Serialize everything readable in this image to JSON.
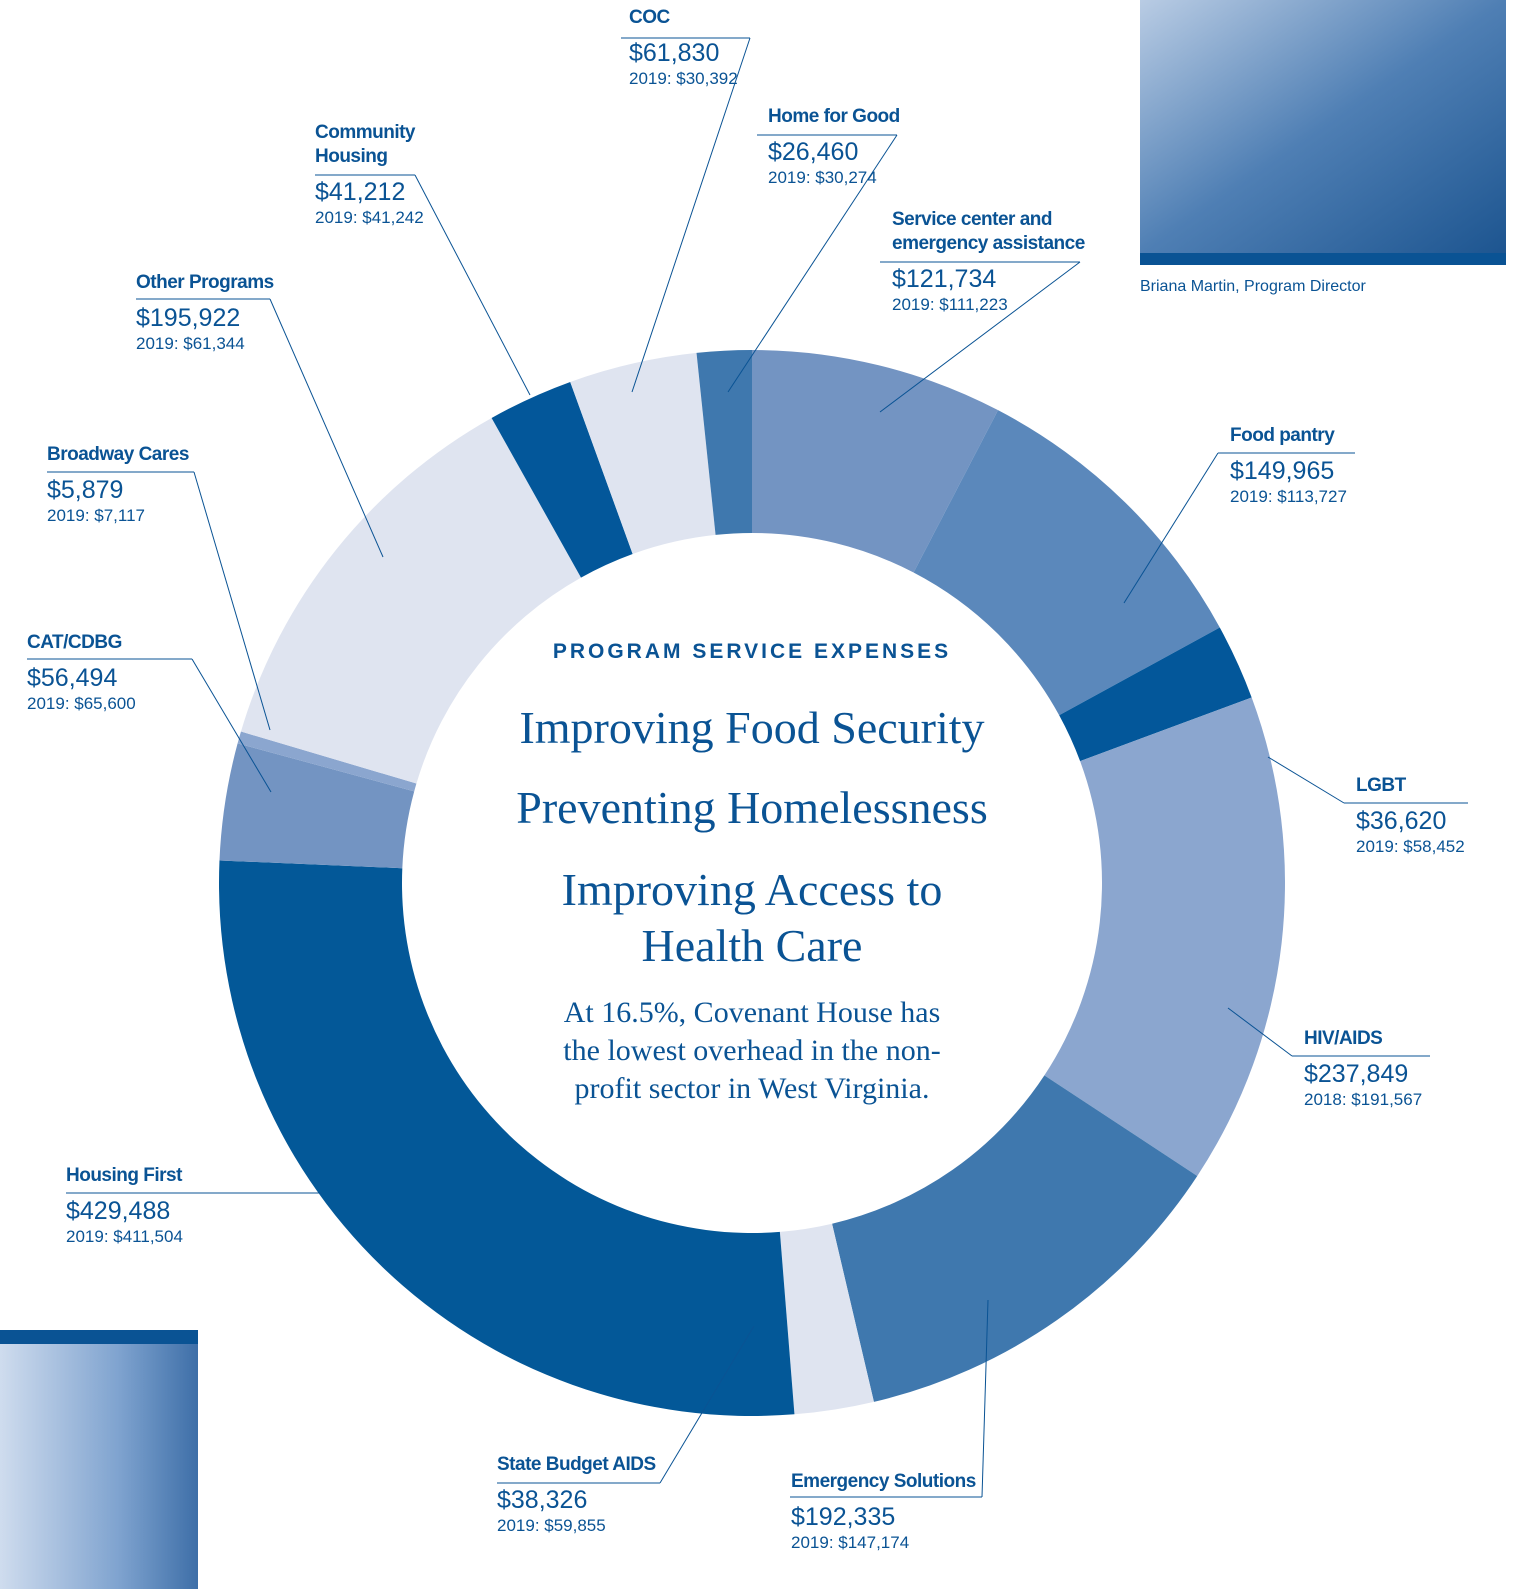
{
  "chart_data": {
    "type": "donut",
    "title": "PROGRAM SERVICE EXPENSES",
    "headings": [
      "Improving Food Security",
      "Preventing Homelessness",
      "Improving Access to Health Care"
    ],
    "note": "At 16.5%, Covenant House has the lowest overhead in the non-profit sector in West Virginia.",
    "categories": [
      "Service center and emergency assistance",
      "Food pantry",
      "LGBT",
      "HIV/AIDS",
      "Emergency Solutions",
      "State Budget AIDS",
      "Housing First",
      "CAT/CDBG",
      "Broadway Cares",
      "Other Programs",
      "Community Housing",
      "COC",
      "Home for Good"
    ],
    "values": [
      121734,
      149965,
      36620,
      237849,
      192335,
      38326,
      429488,
      56494,
      5879,
      195922,
      41212,
      61830,
      26460
    ],
    "value_labels": [
      "$121,734",
      "$149,965",
      "$36,620",
      "$237,849",
      "$192,335",
      "$38,326",
      "$429,488",
      "$56,494",
      "$5,879",
      "$195,922",
      "$41,212",
      "$61,830",
      "$26,460"
    ],
    "prior_labels": [
      "2019: $111,223",
      "2019: $113,727",
      "2019: $58,452",
      "2018: $191,567",
      "2019: $147,174",
      "2019: $59,855",
      "2019: $411,504",
      "2019: $65,600",
      "2019: $7,117",
      "2019: $61,344",
      "2019: $41,242",
      "2019: $30,392",
      "2019: $30,274"
    ],
    "colors": [
      "#7394c2",
      "#5b88bb",
      "#03579a",
      "#8ba6cf",
      "#3f78ae",
      "#dfe4f0",
      "#035898",
      "#7394c2",
      "#8ba6cf",
      "#dfe4f0",
      "#03579a",
      "#dfe4f0",
      "#3f78ae"
    ]
  },
  "photo_caption": "Briana Martin, Program Director"
}
